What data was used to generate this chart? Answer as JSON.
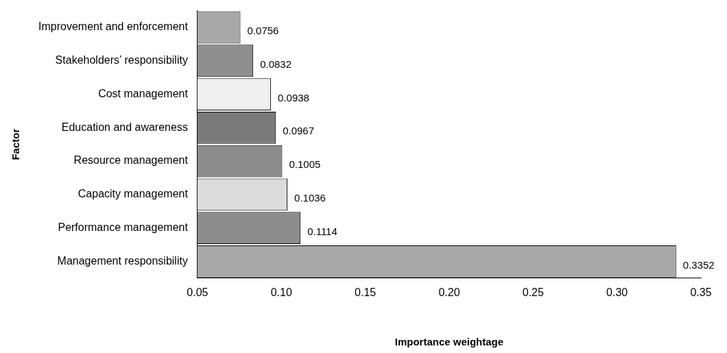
{
  "chart_data": {
    "type": "bar",
    "orientation": "horizontal",
    "xlabel": "Importance weightage",
    "ylabel": "Factor",
    "categories": [
      "Improvement and enforcement",
      "Stakeholders’ responsibility",
      "Cost management",
      "Education and awareness",
      "Resource management",
      "Capacity management",
      "Performance management",
      "Management responsibility"
    ],
    "values": [
      0.0756,
      0.0832,
      0.0938,
      0.0967,
      0.1005,
      0.1036,
      0.1114,
      0.3352
    ],
    "colors": [
      "#a8a8a8",
      "#8e8e8e",
      "#efefef",
      "#7a7a7a",
      "#8c8c8c",
      "#dcdcdc",
      "#8c8c8c",
      "#a8a8a8"
    ],
    "xlim": [
      0.05,
      0.35
    ],
    "xticks": [
      0.05,
      {
        "value": 0.1,
        "label": "0.10"
      },
      0.15,
      {
        "value": 0.2,
        "label": "0.20"
      },
      0.25,
      {
        "value": 0.3,
        "label": "0.30"
      },
      0.35
    ],
    "data_labels": true,
    "grid": false,
    "legend": false
  }
}
